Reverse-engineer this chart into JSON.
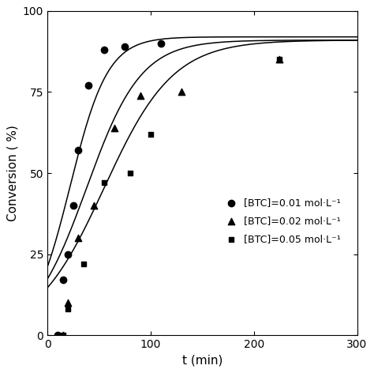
{
  "title": "",
  "xlabel": "t (min)",
  "ylabel": "Conversion ( %)",
  "xlim": [
    0,
    300
  ],
  "ylim": [
    0,
    100
  ],
  "xticks": [
    0,
    100,
    200,
    300
  ],
  "yticks": [
    0,
    25,
    50,
    75,
    100
  ],
  "background_color": "#ffffff",
  "series": [
    {
      "label": "[BTC]=0.01 mol·L⁻¹",
      "marker": "o",
      "markersize": 6,
      "scatter_x": [
        10,
        15,
        20,
        25,
        30,
        40,
        55,
        75,
        110
      ],
      "scatter_y": [
        0,
        17,
        25,
        40,
        57,
        77,
        88,
        89,
        90
      ],
      "A": 92.0,
      "k": 0.055,
      "t0": 22.0
    },
    {
      "label": "[BTC]=0.02 mol·L⁻¹",
      "marker": "^",
      "markersize": 6,
      "scatter_x": [
        15,
        20,
        30,
        45,
        65,
        90,
        130,
        225
      ],
      "scatter_y": [
        0,
        10,
        30,
        40,
        64,
        74,
        75,
        85
      ],
      "A": 91.0,
      "k": 0.038,
      "t0": 38.0
    },
    {
      "label": "[BTC]=0.05 mol·L⁻¹",
      "marker": "s",
      "markersize": 5,
      "scatter_x": [
        15,
        20,
        35,
        55,
        80,
        100,
        225
      ],
      "scatter_y": [
        0,
        8,
        22,
        47,
        50,
        62,
        85
      ],
      "A": 91.0,
      "k": 0.03,
      "t0": 55.0
    }
  ]
}
